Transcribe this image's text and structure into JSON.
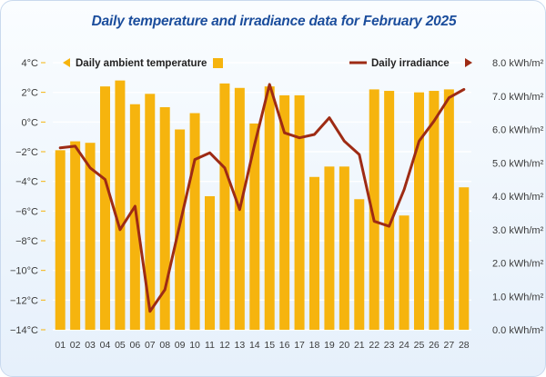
{
  "chart_data": {
    "type": "bar+line",
    "title": "Daily temperature and irradiance data for February 2025",
    "categories": [
      "01",
      "02",
      "03",
      "04",
      "05",
      "06",
      "07",
      "08",
      "09",
      "10",
      "11",
      "12",
      "13",
      "14",
      "15",
      "16",
      "17",
      "18",
      "19",
      "20",
      "21",
      "22",
      "23",
      "24",
      "25",
      "26",
      "27",
      "28"
    ],
    "series": [
      {
        "name": "Daily ambient temperature",
        "type": "bar",
        "axis": "left",
        "unit": "°C",
        "values": [
          -1.9,
          -1.3,
          -1.4,
          2.4,
          2.8,
          1.2,
          1.9,
          1.0,
          -0.5,
          0.6,
          -5.0,
          2.6,
          2.3,
          -0.1,
          2.4,
          1.8,
          1.8,
          -3.7,
          -3.0,
          -3.0,
          -5.2,
          2.2,
          2.1,
          -6.3,
          2.0,
          2.1,
          2.2,
          -4.4
        ]
      },
      {
        "name": "Daily irradiance",
        "type": "line",
        "axis": "right",
        "unit": "kWh/m²",
        "values": [
          5.45,
          5.5,
          4.85,
          4.5,
          3.0,
          3.7,
          0.55,
          1.2,
          3.15,
          5.1,
          5.3,
          4.85,
          3.6,
          5.55,
          7.35,
          5.9,
          5.75,
          5.85,
          6.35,
          5.65,
          5.25,
          3.25,
          3.1,
          4.2,
          5.65,
          6.25,
          6.95,
          7.2
        ]
      }
    ],
    "left_axis": {
      "ylim": [
        -14,
        4
      ],
      "ticks": [
        "4°C",
        "2°C",
        "0°C",
        "−2°C",
        "−4°C",
        "−6°C",
        "−8°C",
        "−10°C",
        "−12°C",
        "−14°C"
      ]
    },
    "right_axis": {
      "ylim": [
        0,
        8
      ],
      "ticks": [
        "8.0 kWh/m²",
        "7.0 kWh/m²",
        "6.0 kWh/m²",
        "5.0 kWh/m²",
        "4.0 kWh/m²",
        "3.0 kWh/m²",
        "2.0 kWh/m²",
        "1.0 kWh/m²",
        "0.0 kWh/m²"
      ]
    },
    "legend": {
      "temperature": "Daily ambient temperature",
      "irradiance": "Daily irradiance"
    },
    "colors": {
      "bar": "#f6b40e",
      "line": "#9e2b14",
      "title": "#1b4d9c",
      "grid": "#ffffff"
    }
  }
}
